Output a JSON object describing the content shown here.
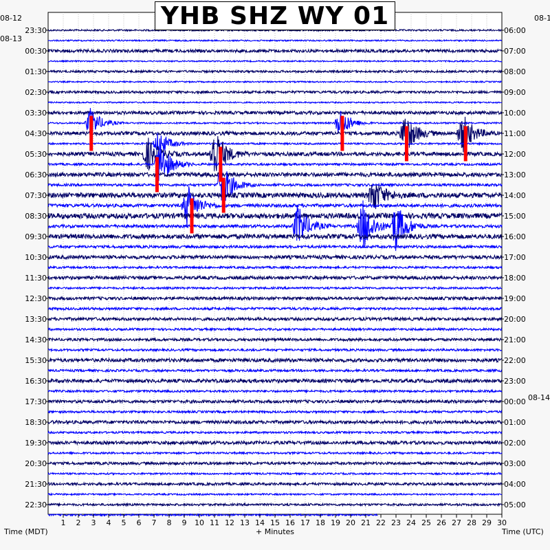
{
  "title": "YHB SHZ WY 01",
  "labels": {
    "left_date_top": "08-12",
    "left_date_second": "08-13",
    "right_date_top": "08-1",
    "right_date_change": "08-14",
    "xlabel": "+ Minutes",
    "ylabel_left": "Time (MDT)",
    "ylabel_right": "Time (UTC)"
  },
  "colors": {
    "trace_dark": "#000066",
    "trace_blue": "#0000ff",
    "pick": "#ff0000",
    "background": "#ffffff",
    "page": "#f7f7f7"
  },
  "chart_data": {
    "type": "line",
    "title": "YHB SHZ WY 01",
    "xlabel": "+ Minutes",
    "ylabel": "Time (MDT)",
    "ylabel_right": "Time (UTC)",
    "xlim": [
      0,
      30
    ],
    "x_ticks": [
      "1",
      "2",
      "3",
      "4",
      "5",
      "6",
      "7",
      "8",
      "9",
      "10",
      "11",
      "12",
      "13",
      "14",
      "15",
      "16",
      "17",
      "18",
      "19",
      "20",
      "21",
      "22",
      "23",
      "24",
      "25",
      "26",
      "27",
      "28",
      "29",
      "30"
    ],
    "y_ticks_left": [
      "23:30",
      "00:30",
      "01:30",
      "02:30",
      "03:30",
      "04:30",
      "05:30",
      "06:30",
      "07:30",
      "08:30",
      "09:30",
      "10:30",
      "11:30",
      "12:30",
      "13:30",
      "14:30",
      "15:30",
      "16:30",
      "17:30",
      "18:30",
      "19:30",
      "20:30",
      "21:30",
      "22:30"
    ],
    "y_ticks_right": [
      "06:00",
      "07:00",
      "08:00",
      "09:00",
      "10:00",
      "11:00",
      "12:00",
      "13:00",
      "14:00",
      "15:00",
      "16:00",
      "17:00",
      "18:00",
      "19:00",
      "20:00",
      "21:00",
      "22:00",
      "23:00",
      "00:00",
      "01:00",
      "02:00",
      "03:00",
      "04:00",
      "05:00"
    ],
    "rows": 48,
    "row_minutes": 30,
    "grid": true,
    "events": [
      {
        "row": 9,
        "minute": 2.8,
        "amplitude": 0.9
      },
      {
        "row": 9,
        "minute": 19.3,
        "amplitude": 0.9
      },
      {
        "row": 10,
        "minute": 23.6,
        "amplitude": 1.3
      },
      {
        "row": 10,
        "minute": 27.4,
        "amplitude": 1.2
      },
      {
        "row": 11,
        "minute": 7.3,
        "amplitude": 0.8
      },
      {
        "row": 12,
        "minute": 6.6,
        "amplitude": 1.0
      },
      {
        "row": 12,
        "minute": 11.0,
        "amplitude": 1.6
      },
      {
        "row": 13,
        "minute": 7.4,
        "amplitude": 1.4
      },
      {
        "row": 15,
        "minute": 11.5,
        "amplitude": 1.4
      },
      {
        "row": 16,
        "minute": 21.5,
        "amplitude": 1.0
      },
      {
        "row": 17,
        "minute": 9.2,
        "amplitude": 1.3
      },
      {
        "row": 19,
        "minute": 16.5,
        "amplitude": 1.3
      },
      {
        "row": 19,
        "minute": 20.8,
        "amplitude": 1.6
      },
      {
        "row": 19,
        "minute": 23.0,
        "amplitude": 1.5
      }
    ],
    "picks": [
      {
        "minute": 2.85,
        "t_start": 8.3,
        "t_end": 11.7
      },
      {
        "minute": 19.45,
        "t_start": 8.3,
        "t_end": 11.7
      },
      {
        "minute": 23.7,
        "t_start": 9.3,
        "t_end": 12.7
      },
      {
        "minute": 27.6,
        "t_start": 9.3,
        "t_end": 12.7
      },
      {
        "minute": 7.2,
        "t_start": 12.3,
        "t_end": 15.7
      },
      {
        "minute": 11.4,
        "t_start": 11.3,
        "t_end": 14.7
      },
      {
        "minute": 11.6,
        "t_start": 14.3,
        "t_end": 17.7
      },
      {
        "minute": 9.5,
        "t_start": 16.3,
        "t_end": 19.7
      }
    ]
  }
}
